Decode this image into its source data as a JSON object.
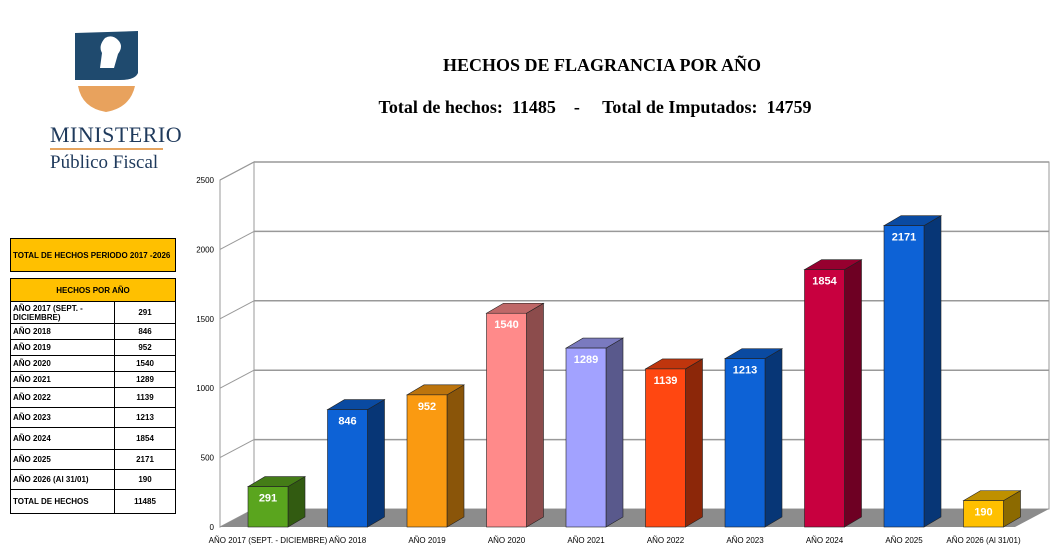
{
  "logo": {
    "line1": "MINISTERIO",
    "line2": "Público Fiscal"
  },
  "header": {
    "title": "HECHOS DE FLAGRANCIA POR AÑO",
    "subtitle": "Total de hechos:  11485    -     Total de Imputados:  14759"
  },
  "side_table": {
    "title": "TOTAL DE HECHOS PERIODO 2017 -2026",
    "subheader": "HECHOS POR AÑO",
    "rows": [
      {
        "label": "AÑO 2017 (SEPT. - DICIEMBRE)",
        "value": "291"
      },
      {
        "label": "AÑO 2018",
        "value": "846"
      },
      {
        "label": "AÑO 2019",
        "value": "952"
      },
      {
        "label": "AÑO 2020",
        "value": "1540"
      },
      {
        "label": "AÑO 2021",
        "value": "1289"
      },
      {
        "label": "AÑO 2022",
        "value": "1139"
      },
      {
        "label": "AÑO 2023",
        "value": "1213"
      },
      {
        "label": "AÑO 2024",
        "value": "1854"
      },
      {
        "label": "AÑO 2025",
        "value": "2171"
      },
      {
        "label": "AÑO 2026 (Al 31/01)",
        "value": "190"
      }
    ],
    "total_label": "TOTAL DE HECHOS",
    "total_value": "11485"
  },
  "chart_data": {
    "type": "bar",
    "categories": [
      "AÑO 2017 (SEPT. - DICIEMBRE)",
      "AÑO 2018",
      "AÑO 2019",
      "AÑO 2020",
      "AÑO 2021",
      "AÑO 2022",
      "AÑO 2023",
      "AÑO 2024",
      "AÑO 2025",
      "AÑO 2026 (Al 31/01)"
    ],
    "values": [
      291,
      846,
      952,
      1540,
      1289,
      1139,
      1213,
      1854,
      2171,
      190
    ],
    "colors": [
      "#5aa51e",
      "#0d62d6",
      "#fa9a11",
      "#ff8a8a",
      "#a2a2ff",
      "#ff4711",
      "#0d62d6",
      "#c8003f",
      "#0d62d6",
      "#ffc000"
    ],
    "ylim": [
      0,
      2500
    ],
    "yticks": [
      0,
      500,
      1000,
      1500,
      2000,
      2500
    ],
    "grid": true,
    "data_labels": true
  }
}
